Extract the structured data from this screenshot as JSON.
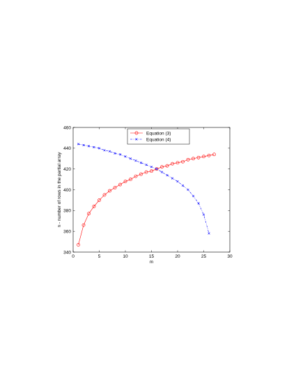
{
  "chart_data": {
    "type": "line",
    "title": "",
    "xlabel": "m",
    "ylabel": "n - number of rows in the partial array",
    "xlim": [
      0,
      30
    ],
    "ylim": [
      340,
      460
    ],
    "xticks": [
      0,
      5,
      10,
      15,
      20,
      25,
      30
    ],
    "yticks": [
      340,
      360,
      380,
      400,
      420,
      440,
      460
    ],
    "grid": false,
    "legend": "top-center",
    "series": [
      {
        "name": "Equation (3)",
        "color": "#ff0000",
        "line": "solid",
        "marker": "circle",
        "x": [
          1,
          2,
          3,
          4,
          5,
          6,
          7,
          8,
          9,
          10,
          11,
          12,
          13,
          14,
          15,
          16,
          17,
          18,
          19,
          20,
          21,
          22,
          23,
          24,
          25,
          26,
          27
        ],
        "y": [
          347,
          366,
          377,
          384,
          390,
          395,
          399,
          402,
          405,
          408,
          410,
          413,
          415,
          417,
          418,
          420,
          422,
          423,
          425,
          426,
          427,
          429,
          430,
          431,
          432,
          433,
          434
        ]
      },
      {
        "name": "Equation (4)",
        "color": "#0000ff",
        "line": "dashdot",
        "marker": "x",
        "x": [
          1,
          2,
          3,
          4,
          5,
          6,
          7,
          8,
          9,
          10,
          11,
          12,
          13,
          14,
          15,
          16,
          17,
          18,
          19,
          20,
          21,
          22,
          23,
          24,
          25,
          26
        ],
        "y": [
          444,
          443,
          442,
          441,
          440,
          438,
          437,
          435,
          434,
          432,
          430,
          428,
          426,
          424,
          422,
          420,
          417,
          414,
          411,
          408,
          404,
          400,
          394,
          387,
          376,
          358
        ]
      }
    ]
  }
}
